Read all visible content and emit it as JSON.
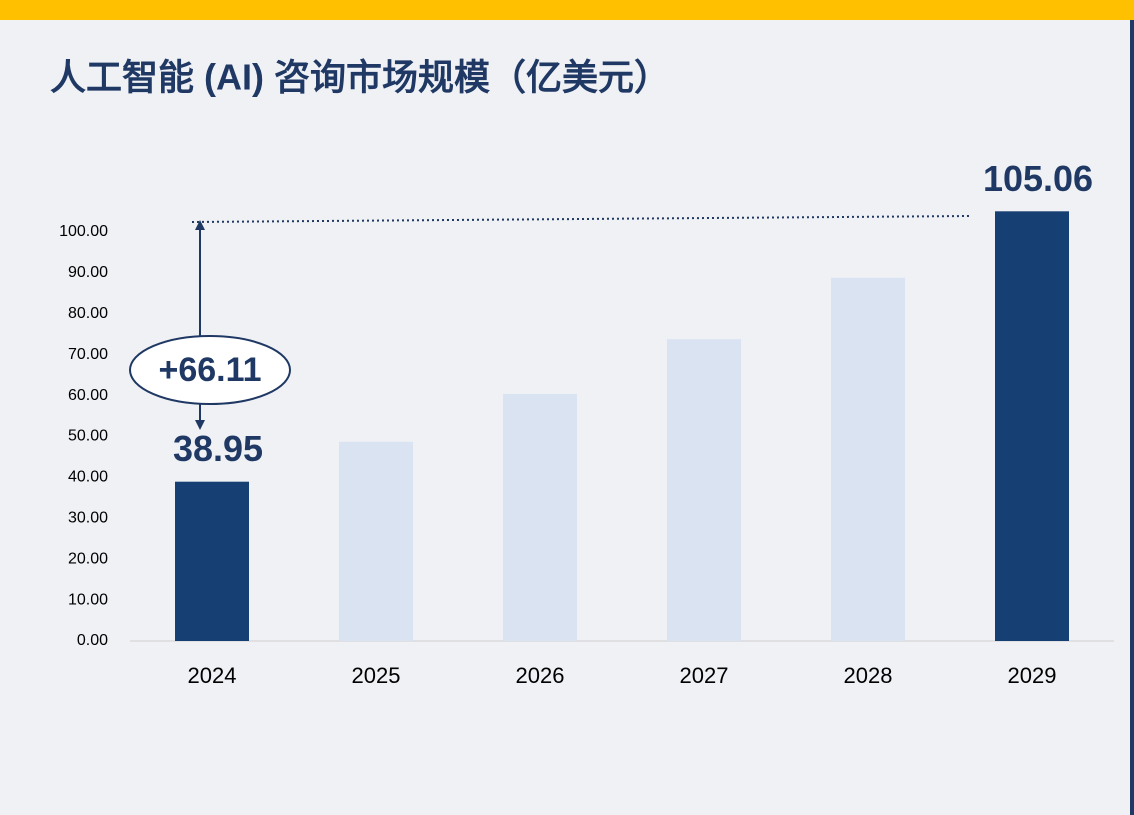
{
  "chart_data": {
    "type": "bar",
    "title": "人工智能 (AI) 咨询市场规模（亿美元）",
    "categories": [
      "2024",
      "2025",
      "2026",
      "2027",
      "2028",
      "2029"
    ],
    "values": [
      38.95,
      48.7,
      60.4,
      73.8,
      88.8,
      105.06
    ],
    "value_labels": [
      "38.95",
      null,
      null,
      null,
      null,
      "105.06"
    ],
    "colors": [
      "#163f73",
      "#dae3f2",
      "#dae3f2",
      "#dae3f2",
      "#dae3f2",
      "#163f73"
    ],
    "ylim": [
      0,
      100
    ],
    "yticks": [
      {
        "value": 0,
        "label": "0.00"
      },
      {
        "value": 10,
        "label": "10.00"
      },
      {
        "value": 20,
        "label": "20.00"
      },
      {
        "value": 30,
        "label": "30.00"
      },
      {
        "value": 40,
        "label": "40.00"
      },
      {
        "value": 50,
        "label": "50.00"
      },
      {
        "value": 60,
        "label": "60.00"
      },
      {
        "value": 70,
        "label": "70.00"
      },
      {
        "value": 80,
        "label": "80.00"
      },
      {
        "value": 90,
        "label": "90.00"
      },
      {
        "value": 100,
        "label": "100.00"
      }
    ],
    "annotation": "+66.11"
  }
}
